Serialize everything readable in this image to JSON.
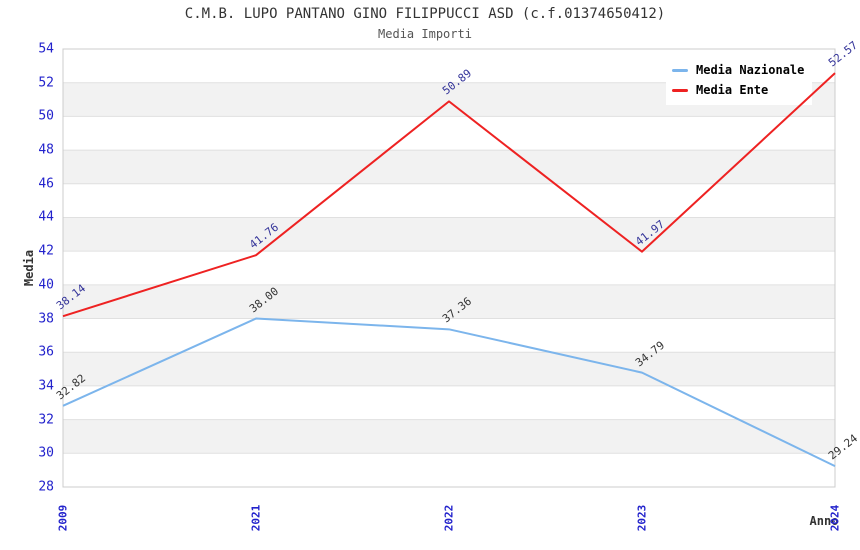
{
  "header": {
    "title": "C.M.B. LUPO PANTANO GINO FILIPPUCCI ASD (c.f.01374650412)",
    "subtitle": "Media Importi"
  },
  "chart_data": {
    "type": "line",
    "title": "C.M.B. LUPO PANTANO GINO FILIPPUCCI ASD (c.f.01374650412)",
    "subtitle": "Media Importi",
    "xlabel": "Anno",
    "ylabel": "Media",
    "categories": [
      "2009",
      "2021",
      "2022",
      "2023",
      "2024"
    ],
    "series": [
      {
        "name": "Media Nazionale",
        "color": "#7cb5ec",
        "label_color": "#333333",
        "values": [
          32.82,
          38.0,
          37.36,
          34.79,
          29.24
        ]
      },
      {
        "name": "Media Ente",
        "color": "#ee2222",
        "label_color": "#333399",
        "values": [
          38.14,
          41.76,
          50.89,
          41.97,
          52.57
        ]
      }
    ],
    "ylim": [
      28,
      54
    ],
    "ytick_step": 2,
    "value_decimals": 2,
    "grid": true,
    "plot_bands": true,
    "legend_position": "top-right"
  },
  "style": {
    "tick_color": "#2222cc",
    "band_color": "#f2f2f2",
    "grid_color": "#e0e0e0",
    "border_color": "#cccccc",
    "title_color": "#333333",
    "subtitle_color": "#555555",
    "axis_title_color": "#333333",
    "legend_text_color": "#000000"
  }
}
